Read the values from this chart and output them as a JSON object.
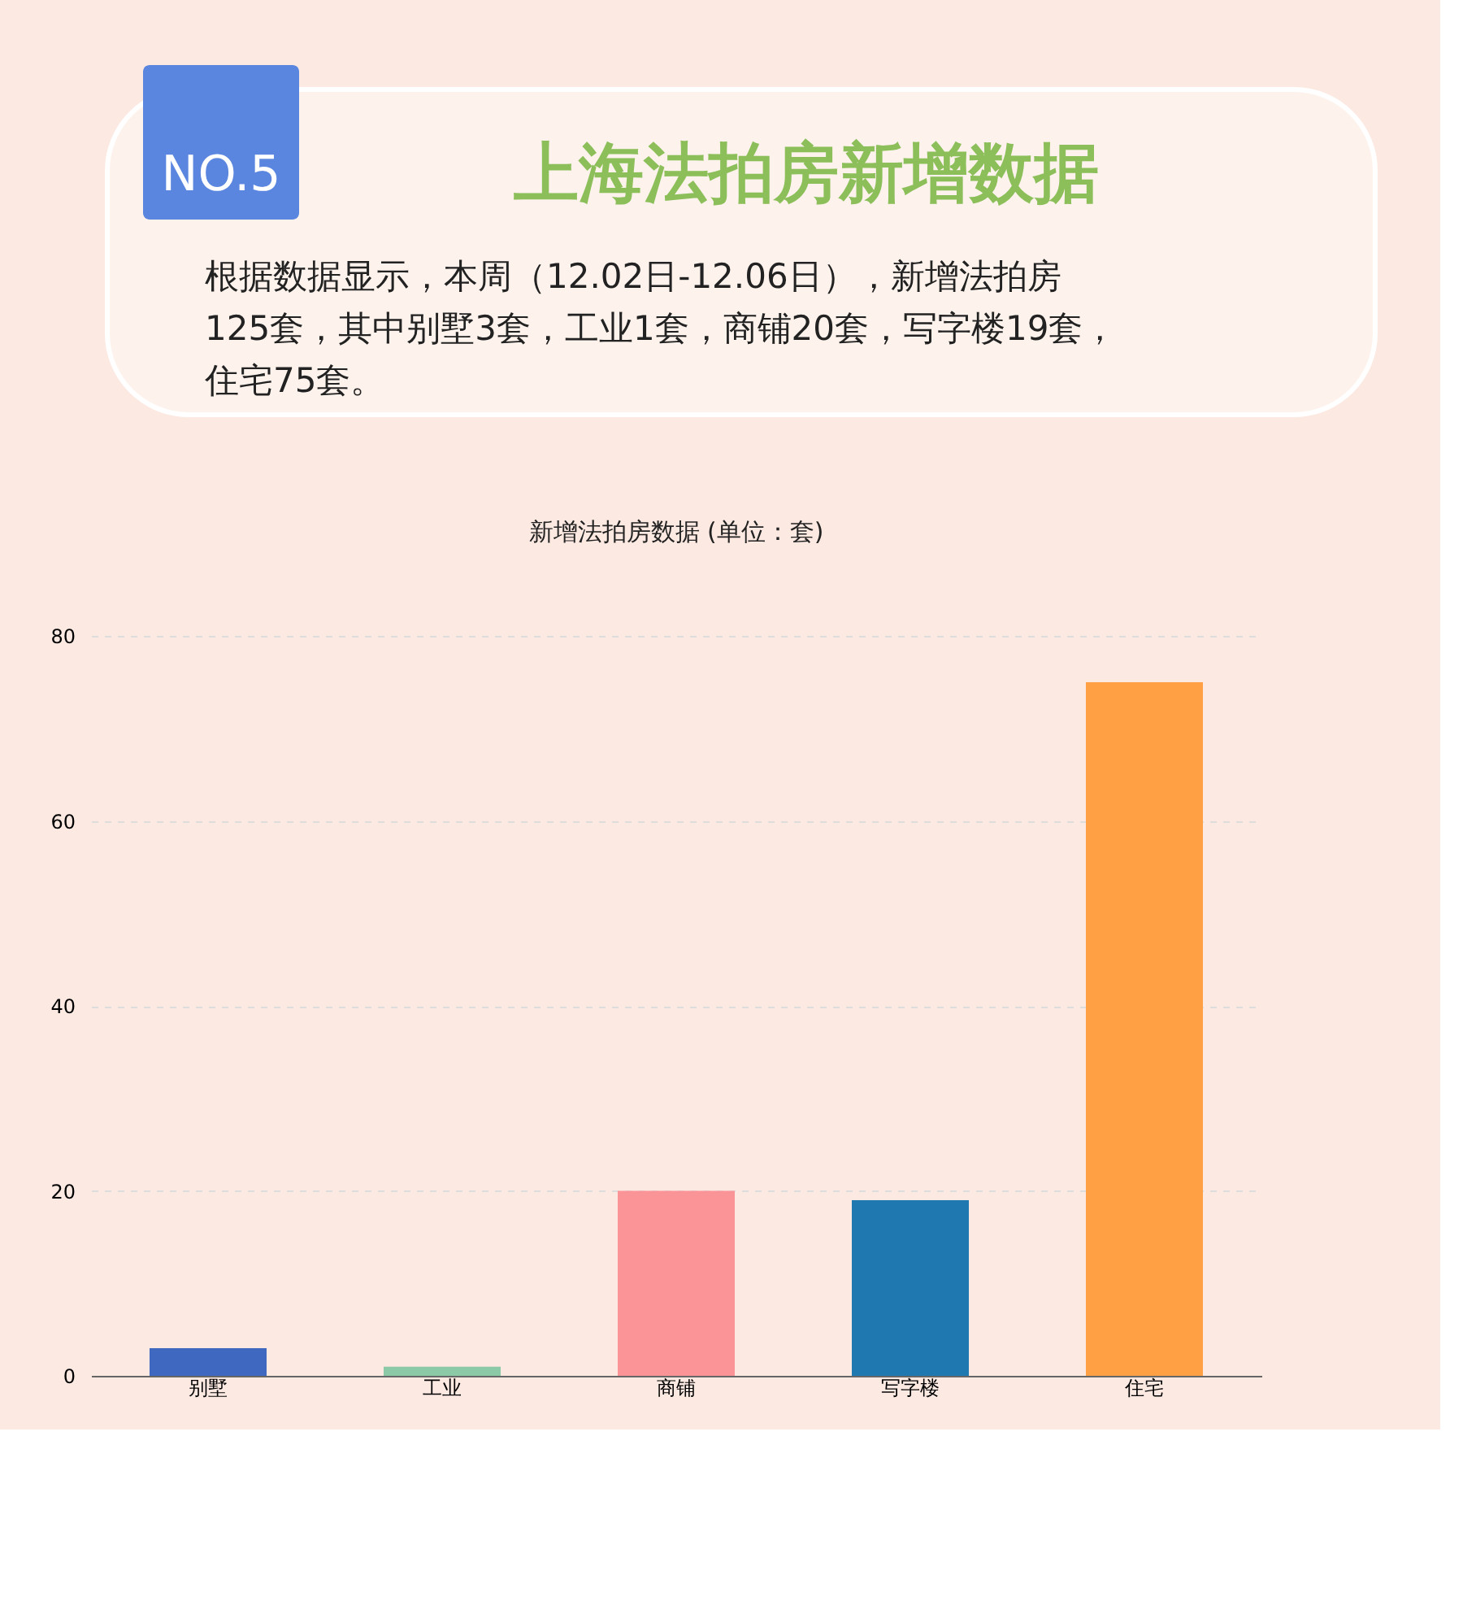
{
  "chart_data": {
    "type": "bar",
    "title": "新增法拍房数据 (单位：套)",
    "annotations": [
      "NO.5",
      "上海法拍房新增数据",
      "根据数据显示，本周（12.02日-12.06日），新增法拍房125套，其中别墅3套，工业1套，商铺20套，写字楼19套，住宅75套。"
    ],
    "categories": [
      "别墅",
      "工业",
      "商铺",
      "写字楼",
      "住宅"
    ],
    "values": [
      3,
      1,
      20,
      19,
      75
    ],
    "colors": [
      "#3f68c0",
      "#8cc9a7",
      "#fb9496",
      "#1f78b0",
      "#ffa044"
    ],
    "ylim": [
      0,
      80
    ],
    "yticks": [
      0,
      20,
      40,
      60,
      80
    ],
    "grid": "y",
    "legend": false
  }
}
